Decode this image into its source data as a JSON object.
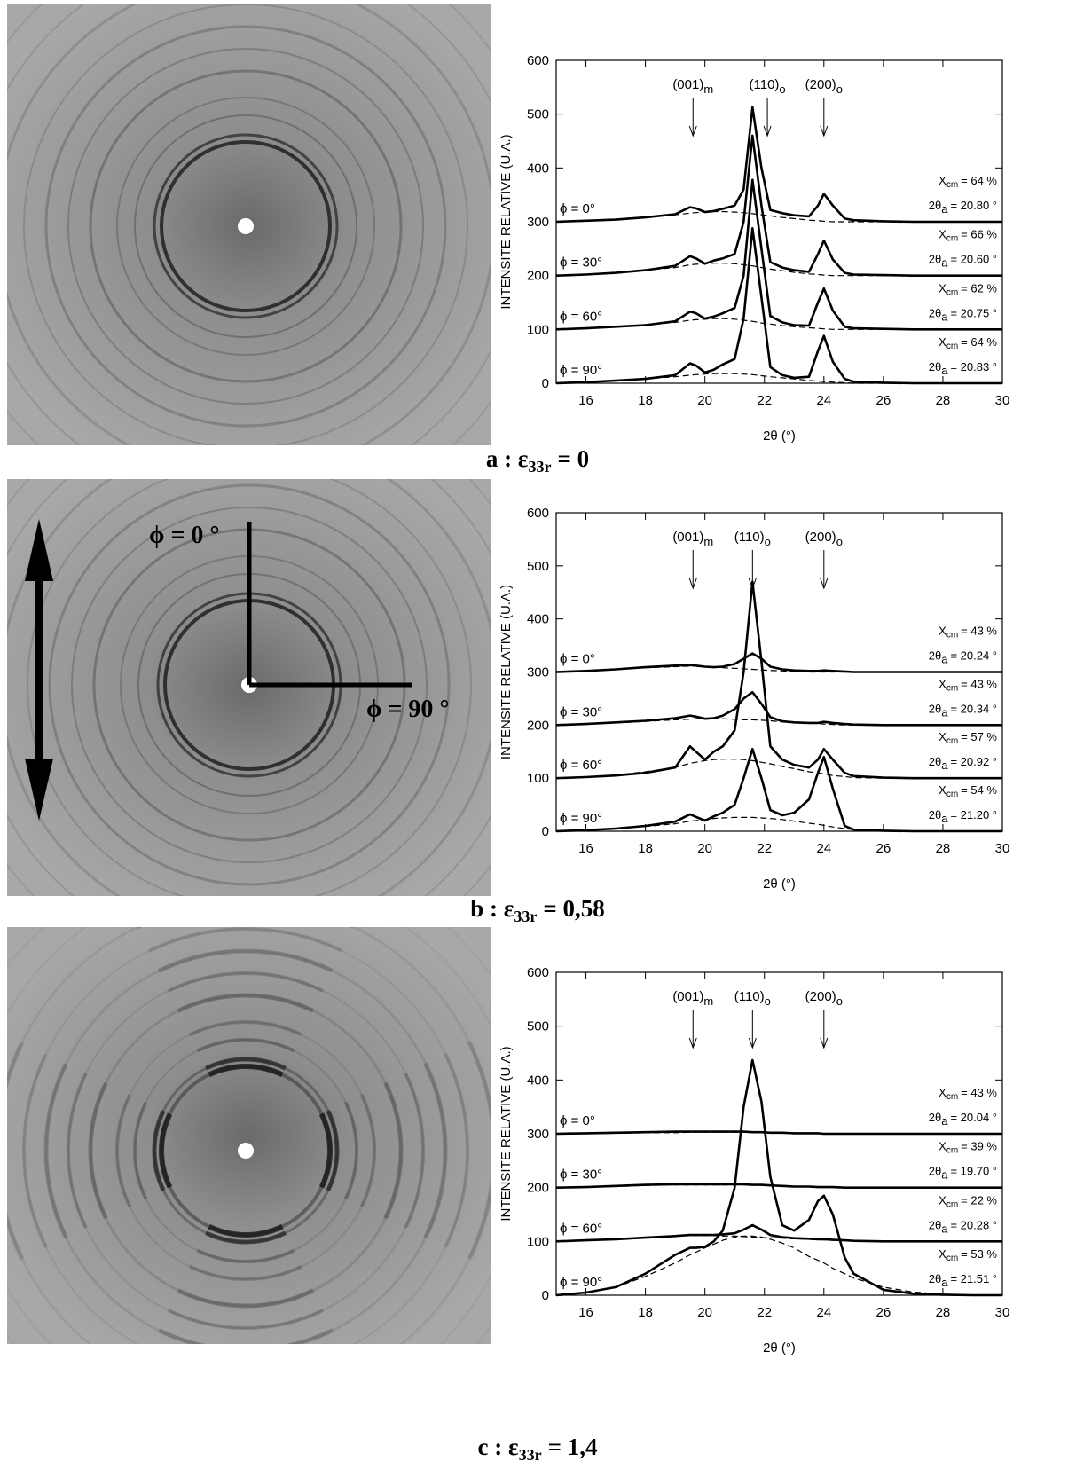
{
  "chart_data": [
    {
      "type": "line",
      "caption": {
        "prefix": "a : ε",
        "sub": "33r",
        "suffix": "= 0"
      },
      "xlabel": "2θ (°)",
      "ylabel": "INTENSITE RELATIVE (U.A.)",
      "xlim": [
        15,
        30
      ],
      "ylim": [
        0,
        600
      ],
      "xticks": [
        16,
        18,
        20,
        22,
        24,
        26,
        28,
        30
      ],
      "yticks": [
        0,
        100,
        200,
        300,
        400,
        500,
        600
      ],
      "peaks": [
        {
          "label": "(001)",
          "sub": "m",
          "x": 19.6
        },
        {
          "label": "(110)",
          "sub": "o",
          "x": 22.1
        },
        {
          "label": "(200)",
          "sub": "o",
          "x": 24
        }
      ],
      "xcm_symbol": "X",
      "xcm_sub": "cm",
      "theta_symbol": "2θ",
      "theta_sub": "a",
      "x": [
        15,
        16,
        17,
        18,
        19,
        19.5,
        19.7,
        20,
        20.3,
        20.6,
        21,
        21.3,
        21.6,
        21.9,
        22.2,
        22.6,
        23,
        23.5,
        23.8,
        24,
        24.3,
        24.7,
        25,
        26,
        27,
        28,
        29,
        30
      ],
      "series": [
        {
          "name": "ϕ = 0°",
          "color": "#000000",
          "xcm": "= 64 %",
          "theta": "= 20.80 °",
          "values": [
            300,
            302,
            304,
            308,
            314,
            327,
            325,
            318,
            320,
            324,
            330,
            360,
            513,
            400,
            322,
            316,
            312,
            310,
            330,
            352,
            330,
            306,
            303,
            301,
            300,
            300,
            300,
            300
          ],
          "amorphous": [
            300,
            302,
            305,
            309,
            313,
            316,
            317,
            318,
            319,
            319,
            318,
            317,
            315,
            313,
            311,
            308,
            306,
            303,
            302,
            301,
            300,
            300,
            300,
            300,
            300,
            300,
            300,
            300
          ]
        },
        {
          "name": "ϕ = 30°",
          "color": "#000000",
          "xcm": "= 66 %",
          "theta": "= 20.60 °",
          "values": [
            200,
            202,
            205,
            210,
            218,
            236,
            232,
            222,
            228,
            232,
            240,
            300,
            460,
            330,
            225,
            215,
            210,
            207,
            240,
            265,
            230,
            205,
            202,
            201,
            200,
            200,
            200,
            200
          ],
          "amorphous": [
            200,
            202,
            205,
            210,
            215,
            220,
            221,
            222,
            223,
            223,
            222,
            220,
            218,
            215,
            212,
            209,
            206,
            203,
            202,
            201,
            200,
            200,
            200,
            200,
            200,
            200,
            200,
            200
          ]
        },
        {
          "name": "ϕ = 60°",
          "color": "#000000",
          "xcm": "= 62 %",
          "theta": "= 20.75 °",
          "values": [
            100,
            102,
            105,
            108,
            115,
            133,
            130,
            120,
            124,
            130,
            140,
            200,
            378,
            250,
            125,
            113,
            108,
            107,
            150,
            176,
            135,
            105,
            102,
            101,
            100,
            100,
            100,
            100
          ],
          "amorphous": [
            100,
            102,
            105,
            109,
            113,
            117,
            118,
            119,
            120,
            120,
            119,
            117,
            115,
            112,
            110,
            107,
            105,
            103,
            102,
            101,
            100,
            100,
            100,
            100,
            100,
            100,
            100,
            100
          ]
        },
        {
          "name": "ϕ = 90°",
          "color": "#000000",
          "xcm": "= 64 %",
          "theta": "= 20.83 °",
          "values": [
            0,
            2,
            5,
            8,
            15,
            37,
            33,
            20,
            25,
            35,
            45,
            120,
            288,
            160,
            30,
            15,
            10,
            12,
            60,
            88,
            40,
            8,
            3,
            1,
            0,
            0,
            0,
            0
          ],
          "amorphous": [
            0,
            2,
            5,
            8,
            12,
            15,
            16,
            17,
            18,
            18,
            18,
            17,
            16,
            14,
            12,
            10,
            8,
            5,
            4,
            3,
            2,
            1,
            0,
            0,
            0,
            0,
            0,
            0
          ]
        }
      ]
    },
    {
      "type": "line",
      "caption": {
        "prefix": "b : ε",
        "sub": "33r",
        "suffix": "= 0,58"
      },
      "image_labels": [
        "ϕ = 0 °",
        "ϕ = 90 °"
      ],
      "xlabel": "2θ (°)",
      "ylabel": "INTENSITE RELATIVE (U.A.)",
      "xlim": [
        15,
        30
      ],
      "ylim": [
        0,
        600
      ],
      "xticks": [
        16,
        18,
        20,
        22,
        24,
        26,
        28,
        30
      ],
      "yticks": [
        0,
        100,
        200,
        300,
        400,
        500,
        600
      ],
      "peaks": [
        {
          "label": "(001)",
          "sub": "m",
          "x": 19.6
        },
        {
          "label": "(110)",
          "sub": "o",
          "x": 21.6
        },
        {
          "label": "(200)",
          "sub": "o",
          "x": 24
        }
      ],
      "xcm_symbol": "X",
      "xcm_sub": "cm",
      "theta_symbol": "2θ",
      "theta_sub": "a",
      "x": [
        15,
        16,
        17,
        18,
        19,
        19.5,
        19.7,
        20,
        20.3,
        20.6,
        21,
        21.3,
        21.6,
        21.9,
        22.2,
        22.6,
        23,
        23.5,
        23.8,
        24,
        24.3,
        24.7,
        25,
        26,
        27,
        28,
        29,
        30
      ],
      "series": [
        {
          "name": "ϕ = 0°",
          "color": "#000000",
          "xcm": "= 43 %",
          "theta": "= 20.24 °",
          "values": [
            300,
            302,
            305,
            309,
            312,
            313,
            312,
            310,
            309,
            310,
            315,
            325,
            335,
            325,
            310,
            305,
            303,
            302,
            302,
            303,
            302,
            301,
            300,
            300,
            300,
            300,
            300,
            300
          ],
          "amorphous": [
            300,
            302,
            305,
            308,
            310,
            311,
            311,
            310,
            309,
            308,
            307,
            306,
            305,
            304,
            303,
            302,
            301,
            300,
            300,
            300,
            300,
            300,
            300,
            300,
            300,
            300,
            300,
            300
          ]
        },
        {
          "name": "ϕ = 30°",
          "color": "#000000",
          "xcm": "= 43 %",
          "theta": "= 20.34 °",
          "values": [
            200,
            202,
            205,
            208,
            213,
            218,
            216,
            212,
            213,
            218,
            230,
            250,
            262,
            240,
            215,
            207,
            205,
            204,
            204,
            206,
            204,
            202,
            201,
            200,
            200,
            200,
            200,
            200
          ],
          "amorphous": [
            200,
            202,
            204,
            207,
            210,
            211,
            212,
            212,
            212,
            212,
            211,
            210,
            210,
            209,
            208,
            206,
            205,
            204,
            203,
            202,
            201,
            200,
            200,
            200,
            200,
            200,
            200,
            200
          ]
        },
        {
          "name": "ϕ = 60°",
          "color": "#000000",
          "xcm": "= 57 %",
          "theta": "= 20.92 °",
          "values": [
            100,
            102,
            105,
            110,
            120,
            160,
            150,
            135,
            150,
            160,
            190,
            300,
            470,
            320,
            160,
            135,
            125,
            120,
            135,
            155,
            135,
            110,
            104,
            101,
            100,
            100,
            100,
            100
          ],
          "amorphous": [
            100,
            102,
            106,
            112,
            120,
            128,
            130,
            133,
            135,
            136,
            136,
            135,
            133,
            130,
            127,
            122,
            118,
            112,
            110,
            108,
            105,
            103,
            101,
            100,
            100,
            100,
            100,
            100
          ]
        },
        {
          "name": "ϕ = 90°",
          "color": "#000000",
          "xcm": "= 54 %",
          "theta": "= 21.20 °",
          "values": [
            0,
            2,
            5,
            10,
            18,
            32,
            27,
            20,
            28,
            35,
            50,
            100,
            155,
            100,
            40,
            30,
            35,
            60,
            110,
            140,
            80,
            10,
            3,
            1,
            0,
            0,
            0,
            0
          ],
          "amorphous": [
            0,
            2,
            5,
            9,
            14,
            19,
            20,
            22,
            24,
            25,
            26,
            26,
            26,
            25,
            24,
            22,
            19,
            15,
            13,
            11,
            8,
            5,
            3,
            1,
            0,
            0,
            0,
            0
          ]
        }
      ]
    },
    {
      "type": "line",
      "caption": {
        "prefix": "c : ε",
        "sub": "33r",
        "suffix": "= 1,4"
      },
      "xlabel": "2θ (°)",
      "ylabel": "INTENSITE RELATIVE (U.A.)",
      "xlim": [
        15,
        30
      ],
      "ylim": [
        0,
        600
      ],
      "xticks": [
        16,
        18,
        20,
        22,
        24,
        26,
        28,
        30
      ],
      "yticks": [
        0,
        100,
        200,
        300,
        400,
        500,
        600
      ],
      "peaks": [
        {
          "label": "(001)",
          "sub": "m",
          "x": 19.6
        },
        {
          "label": "(110)",
          "sub": "o",
          "x": 21.6
        },
        {
          "label": "(200)",
          "sub": "o",
          "x": 24
        }
      ],
      "xcm_symbol": "X",
      "xcm_sub": "cm",
      "theta_symbol": "2θ",
      "theta_sub": "a",
      "x": [
        15,
        16,
        17,
        18,
        19,
        19.5,
        19.7,
        20,
        20.3,
        20.6,
        21,
        21.3,
        21.6,
        21.9,
        22.2,
        22.6,
        23,
        23.5,
        23.8,
        24,
        24.3,
        24.7,
        25,
        26,
        27,
        28,
        29,
        30
      ],
      "series": [
        {
          "name": "ϕ = 0°",
          "color": "#000000",
          "xcm": "= 43 %",
          "theta": "= 20.04 °",
          "values": [
            300,
            301,
            302,
            303,
            304,
            304,
            304,
            304,
            304,
            304,
            304,
            304,
            303,
            303,
            302,
            302,
            301,
            301,
            301,
            300,
            300,
            300,
            300,
            300,
            300,
            300,
            300,
            300
          ],
          "amorphous": [
            300,
            300,
            301,
            302,
            302,
            303,
            303,
            303,
            303,
            303,
            303,
            303,
            303,
            302,
            302,
            302,
            301,
            301,
            301,
            300,
            300,
            300,
            300,
            300,
            300,
            300,
            300,
            300
          ]
        },
        {
          "name": "ϕ = 30°",
          "color": "#000000",
          "xcm": "= 39 %",
          "theta": "= 19.70 °",
          "values": [
            200,
            201,
            203,
            205,
            206,
            206,
            206,
            206,
            206,
            206,
            206,
            206,
            205,
            205,
            204,
            203,
            202,
            202,
            201,
            201,
            201,
            200,
            200,
            200,
            200,
            200,
            200,
            200
          ],
          "amorphous": [
            200,
            201,
            202,
            204,
            205,
            205,
            205,
            205,
            205,
            205,
            205,
            205,
            205,
            204,
            204,
            203,
            202,
            202,
            201,
            201,
            200,
            200,
            200,
            200,
            200,
            200,
            200,
            200
          ]
        },
        {
          "name": "ϕ = 60°",
          "color": "#000000",
          "xcm": "= 22 %",
          "theta": "= 20.28 °",
          "values": [
            100,
            102,
            104,
            107,
            110,
            112,
            112,
            112,
            112,
            113,
            115,
            122,
            130,
            122,
            112,
            108,
            106,
            105,
            104,
            104,
            103,
            102,
            101,
            100,
            100,
            100,
            100,
            100
          ],
          "amorphous": [
            100,
            102,
            104,
            107,
            110,
            111,
            111,
            111,
            111,
            110,
            110,
            109,
            108,
            107,
            107,
            106,
            105,
            104,
            103,
            103,
            102,
            101,
            101,
            100,
            100,
            100,
            100,
            100
          ]
        },
        {
          "name": "ϕ = 90°",
          "color": "#000000",
          "xcm": "= 53 %",
          "theta": "= 21.51 °",
          "values": [
            0,
            5,
            15,
            40,
            75,
            88,
            88,
            90,
            100,
            120,
            200,
            350,
            437,
            360,
            220,
            130,
            120,
            140,
            175,
            185,
            150,
            70,
            40,
            10,
            3,
            1,
            0,
            0
          ],
          "amorphous": [
            0,
            5,
            15,
            35,
            60,
            75,
            80,
            88,
            95,
            102,
            108,
            110,
            110,
            108,
            104,
            97,
            88,
            72,
            65,
            60,
            50,
            40,
            32,
            15,
            6,
            2,
            0,
            0
          ]
        }
      ]
    }
  ]
}
